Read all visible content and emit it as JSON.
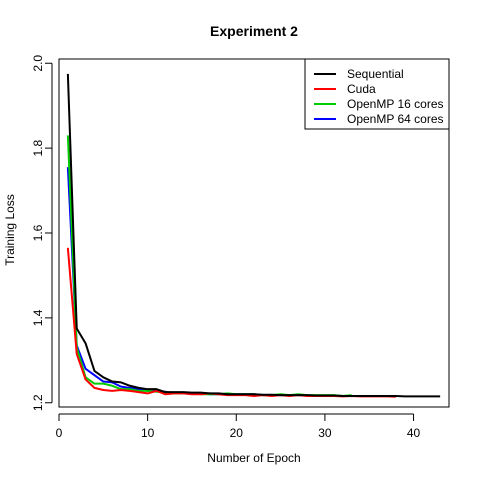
{
  "chart_data": {
    "type": "line",
    "title": "Experiment 2",
    "xlabel": "Number of Epoch",
    "ylabel": "Training Loss",
    "xlim": [
      0,
      44
    ],
    "ylim": [
      1.19,
      2.01
    ],
    "xticks": [
      0,
      10,
      20,
      30,
      40
    ],
    "yticks": [
      1.2,
      1.4,
      1.6,
      1.8,
      2.0
    ],
    "xtick_labels": [
      "0",
      "10",
      "20",
      "30",
      "40"
    ],
    "ytick_labels": [
      "1.2",
      "1.4",
      "1.6",
      "1.8",
      "2.0"
    ],
    "legend_position": "top-right",
    "grid": false,
    "series": [
      {
        "name": "Sequential",
        "color": "#000000",
        "x": [
          1,
          2,
          3,
          4,
          5,
          6,
          7,
          8,
          9,
          10,
          11,
          12,
          13,
          14,
          15,
          16,
          17,
          18,
          19,
          20,
          21,
          22,
          23,
          24,
          25,
          26,
          27,
          28,
          29,
          30,
          31,
          32,
          33,
          34,
          35,
          36,
          37,
          38,
          39,
          40,
          41,
          42,
          43
        ],
        "y": [
          1.975,
          1.375,
          1.34,
          1.275,
          1.26,
          1.25,
          1.248,
          1.24,
          1.235,
          1.232,
          1.232,
          1.225,
          1.225,
          1.225,
          1.224,
          1.224,
          1.222,
          1.222,
          1.22,
          1.22,
          1.22,
          1.22,
          1.219,
          1.219,
          1.218,
          1.218,
          1.218,
          1.218,
          1.217,
          1.217,
          1.217,
          1.216,
          1.216,
          1.216,
          1.216,
          1.216,
          1.216,
          1.216,
          1.215,
          1.215,
          1.215,
          1.215,
          1.215
        ]
      },
      {
        "name": "Cuda",
        "color": "#ff0000",
        "x": [
          1,
          2,
          3,
          4,
          5,
          6,
          7,
          8,
          9,
          10,
          11,
          12,
          13,
          14,
          15,
          16,
          17,
          18,
          19,
          20,
          21,
          22,
          23,
          24,
          25,
          26,
          27,
          28,
          29,
          30,
          31,
          32,
          33,
          34,
          35,
          36,
          37,
          38
        ],
        "y": [
          1.565,
          1.315,
          1.255,
          1.235,
          1.23,
          1.228,
          1.23,
          1.228,
          1.225,
          1.222,
          1.228,
          1.22,
          1.222,
          1.222,
          1.22,
          1.22,
          1.222,
          1.22,
          1.218,
          1.218,
          1.218,
          1.216,
          1.218,
          1.216,
          1.218,
          1.216,
          1.218,
          1.216,
          1.216,
          1.216,
          1.216,
          1.215,
          1.216,
          1.215,
          1.215,
          1.215,
          1.215,
          1.214
        ]
      },
      {
        "name": "OpenMP 16 cores",
        "color": "#00cc00",
        "x": [
          1,
          2,
          3,
          4,
          5,
          6,
          7,
          8,
          9,
          10,
          11,
          12,
          13,
          14,
          15,
          16,
          17,
          18,
          19,
          20,
          21,
          22,
          23,
          24,
          25,
          26,
          27,
          28,
          29,
          30,
          31,
          32,
          33
        ],
        "y": [
          1.83,
          1.33,
          1.26,
          1.245,
          1.245,
          1.24,
          1.232,
          1.232,
          1.228,
          1.228,
          1.226,
          1.225,
          1.222,
          1.222,
          1.222,
          1.22,
          1.22,
          1.22,
          1.222,
          1.22,
          1.22,
          1.22,
          1.218,
          1.218,
          1.22,
          1.218,
          1.22,
          1.218,
          1.218,
          1.218,
          1.218,
          1.216,
          1.218
        ]
      },
      {
        "name": "OpenMP 64 cores",
        "color": "#0000ff",
        "x": [
          1,
          2,
          3,
          4,
          5,
          6,
          7,
          8,
          9,
          10,
          11,
          12,
          13,
          14,
          15,
          16,
          17,
          18,
          19,
          20,
          21,
          22,
          23,
          24,
          25,
          26,
          27,
          28,
          29,
          30,
          31,
          32
        ],
        "y": [
          1.755,
          1.335,
          1.28,
          1.265,
          1.25,
          1.248,
          1.238,
          1.235,
          1.232,
          1.228,
          1.228,
          1.226,
          1.222,
          1.224,
          1.222,
          1.222,
          1.22,
          1.22,
          1.22,
          1.22,
          1.22,
          1.22,
          1.218,
          1.218,
          1.218,
          1.218,
          1.218,
          1.217,
          1.217,
          1.217,
          1.217,
          1.216
        ]
      }
    ]
  }
}
